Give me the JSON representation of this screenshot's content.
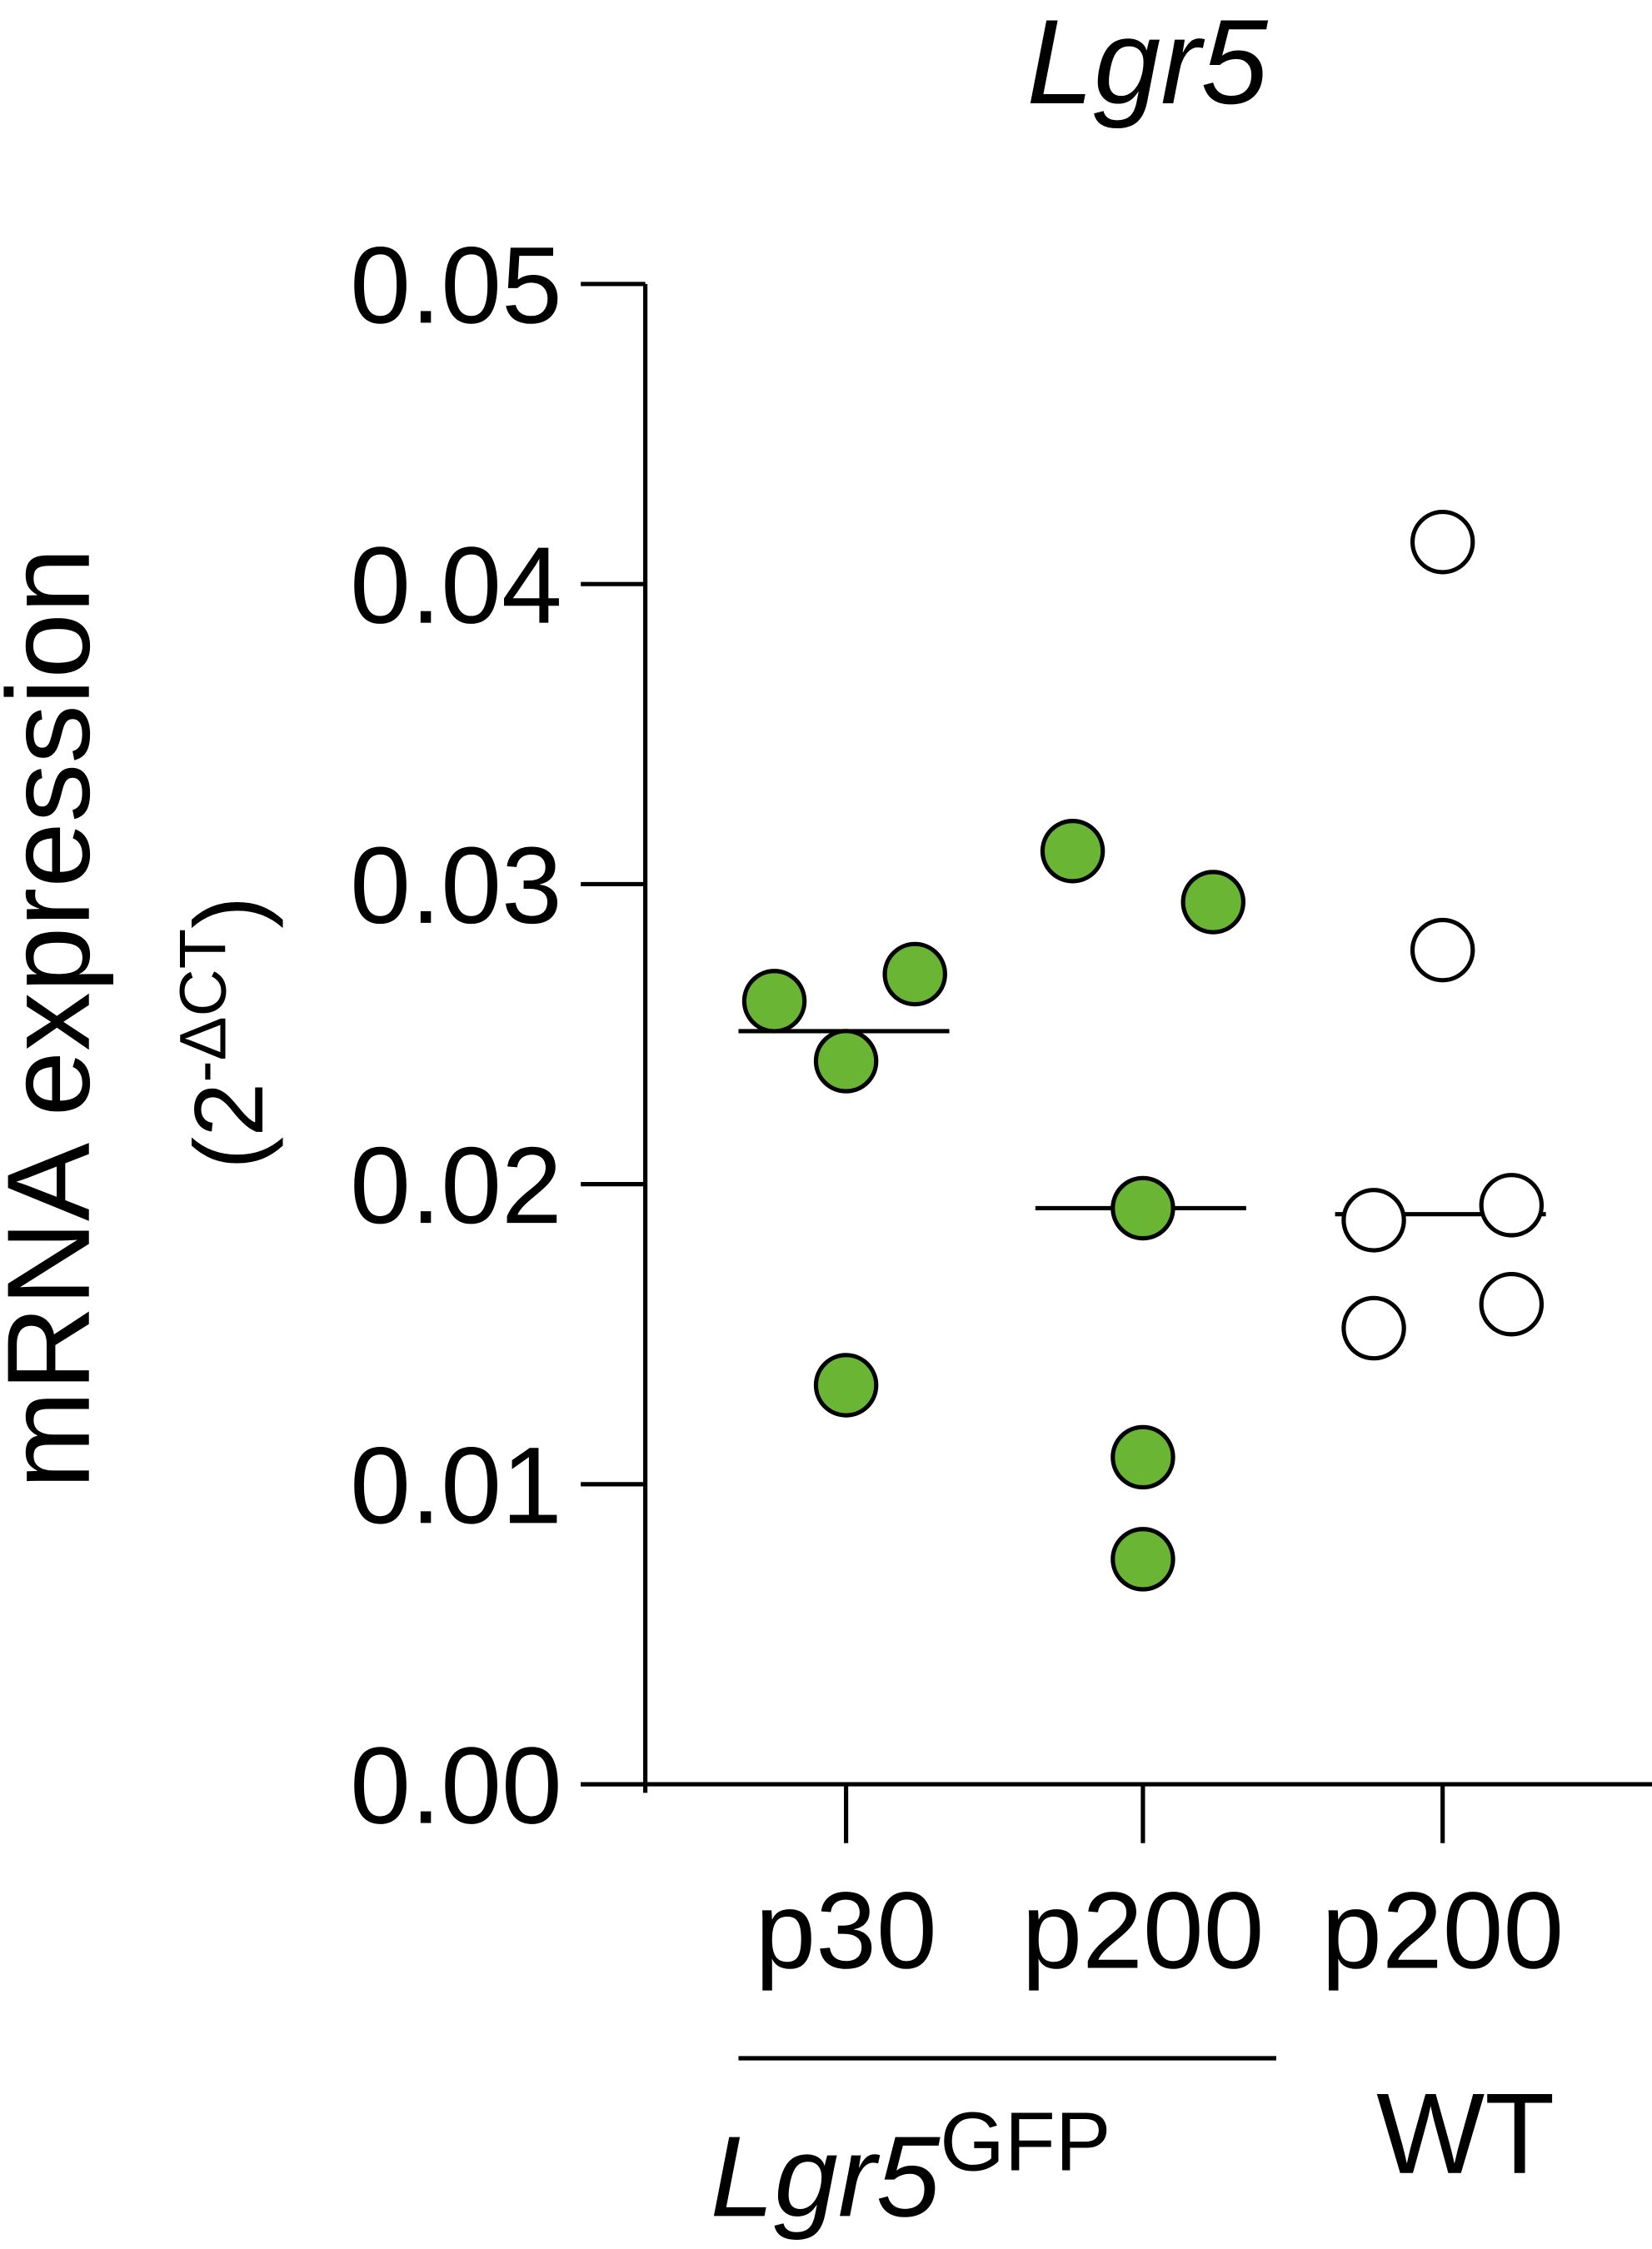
{
  "chart_data": {
    "type": "dot",
    "title": "Lgr5",
    "y_label": "mRNA expression",
    "y_unit": {
      "open": "(2",
      "superscript": "-ΔCT",
      "close": ")"
    },
    "categories": [
      "p30",
      "p200",
      "p200"
    ],
    "values": [
      [
        0.0261,
        0.027,
        0.0241,
        0.0133
      ],
      [
        0.0311,
        0.0294,
        0.0192,
        0.0109,
        0.0075
      ],
      [
        0.0414,
        0.0278,
        0.0188,
        0.0193,
        0.0152,
        0.016
      ]
    ],
    "medians": [
      0.0251,
      0.0192,
      0.019
    ],
    "colors": [
      "#6ab533",
      "#6ab533",
      "#ffffff"
    ],
    "groups": [
      {
        "label": "Lgr5",
        "superscript": "GFP"
      },
      {
        "label": "WT"
      }
    ],
    "ylim": [
      0,
      0.05
    ],
    "yticks": [
      {
        "value": 0,
        "label": "0.00"
      },
      0.01,
      0.02,
      0.03,
      0.04,
      0.05
    ]
  }
}
